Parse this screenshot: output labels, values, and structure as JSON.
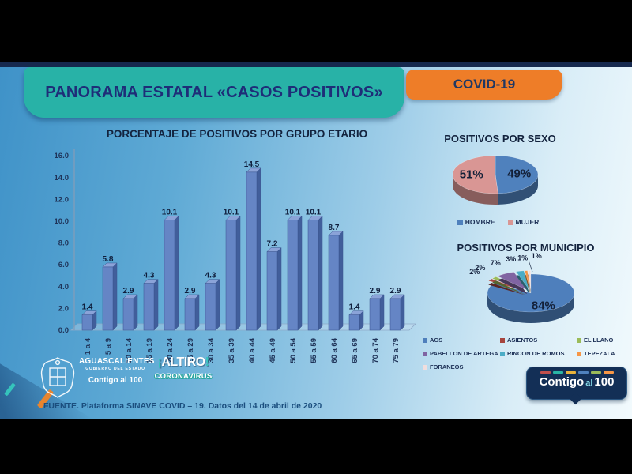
{
  "header": {
    "title": "PANORAMA ESTATAL «CASOS POSITIVOS»",
    "badge": "COVID-19"
  },
  "chart_data": [
    {
      "type": "bar",
      "title": "PORCENTAJE DE POSITIVOS POR GRUPO ETARIO",
      "categories": [
        "1 a 4",
        "5 a 9",
        "10 a 14",
        "15 a 19",
        "20 a 24",
        "25 a 29",
        "30 a 34",
        "35 a 39",
        "40 a 44",
        "45 a 49",
        "50 a 54",
        "55 a 59",
        "60 a 64",
        "65 a 69",
        "70 a 74",
        "75 a 79"
      ],
      "values": [
        1.4,
        5.8,
        2.9,
        4.3,
        10.1,
        2.9,
        4.3,
        10.1,
        14.5,
        7.2,
        10.1,
        10.1,
        8.7,
        1.4,
        2.9,
        2.9
      ],
      "xlabel": "",
      "ylabel": "",
      "ylim": [
        0,
        16
      ],
      "yticks": [
        0,
        2,
        4,
        6,
        8,
        10,
        12,
        14,
        16
      ],
      "grid": false,
      "bar_color": "#6585C5",
      "bar_side_color": "#415E9B",
      "bar_top_color": "#8BA3D8",
      "bar_edge_color": "#3A5590"
    },
    {
      "type": "pie",
      "title": "POSITIVOS POR SEXO",
      "labels": [
        "HOMBRE",
        "MUJER"
      ],
      "values": [
        49,
        51
      ],
      "display_labels": [
        "49%",
        "51%"
      ],
      "colors": [
        "#4F81BD",
        "#D99694"
      ],
      "legend_position": "bottom"
    },
    {
      "type": "pie",
      "title": "POSITIVOS POR MUNICIPIO",
      "labels": [
        "AGS",
        "ASIENTOS",
        "EL LLANO",
        "PABELLON DE ARTEGA",
        "RINCON DE ROMOS",
        "TEPEZALA",
        "FORANEOS"
      ],
      "values": [
        84,
        2,
        2,
        7,
        3,
        1,
        1
      ],
      "display_labels": [
        "84%",
        "2%",
        "2%",
        "7%",
        "3%",
        "1%",
        "1%"
      ],
      "colors": [
        "#4E7FBC",
        "#A6453E",
        "#9BBB59",
        "#8064A2",
        "#4BACC6",
        "#F79646",
        "#F0DEDE"
      ],
      "legend_position": "bottom-left"
    }
  ],
  "footer": {
    "source": "FUENTE. Plataforma SINAVE COVID – 19. Datos del 14 de abril de 2020",
    "gov_logo": {
      "state": "AGUASCALIENTES",
      "sub": "GOBIERNO DEL ESTADO",
      "slogan": "Contigo al 100"
    },
    "altiro_logo": {
      "open": "¡",
      "name": "ALTIRO",
      "close": "!",
      "subtitle": "CORONAVIRUS"
    },
    "bubble": {
      "word1": "Contigo",
      "word2": "al",
      "word3": "100",
      "dash_colors": [
        "#C0504D",
        "#2AB5A5",
        "#E8B23A",
        "#4F81BD",
        "#9BBB59",
        "#F79646"
      ]
    }
  },
  "colors": {
    "header_teal": "#28B2A7",
    "badge_orange": "#EE7D28",
    "top_strip_navy": "#16294E",
    "title_text": "#1E2D78"
  }
}
